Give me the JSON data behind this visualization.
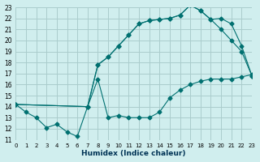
{
  "xlabel": "Humidex (Indice chaleur)",
  "ylabel": "",
  "bg_color": "#d0eeee",
  "grid_color": "#aacccc",
  "line_color": "#007070",
  "xlim": [
    0,
    23
  ],
  "ylim": [
    11,
    23
  ],
  "xticks": [
    0,
    1,
    2,
    3,
    4,
    5,
    6,
    7,
    8,
    9,
    10,
    11,
    12,
    13,
    14,
    15,
    16,
    17,
    18,
    19,
    20,
    21,
    22,
    23
  ],
  "yticks": [
    11,
    12,
    13,
    14,
    15,
    16,
    17,
    18,
    19,
    20,
    21,
    22,
    23
  ],
  "line1_x": [
    0,
    1,
    2,
    3,
    4,
    5,
    6,
    7,
    8,
    9,
    10,
    11,
    12,
    13,
    14,
    15,
    16,
    17,
    18,
    19,
    20,
    21,
    22,
    23
  ],
  "line1_y": [
    14.2,
    13.5,
    13.0,
    12.1,
    12.4,
    11.7,
    11.3,
    14.0,
    16.5,
    13.0,
    13.2,
    13.0,
    13.0,
    13.0,
    13.5,
    14.8,
    15.5,
    16.0,
    16.3,
    16.5,
    16.5,
    16.5,
    16.7,
    16.9
  ],
  "line2_x": [
    0,
    7,
    8,
    9,
    10,
    11,
    12,
    13,
    14,
    15,
    16,
    17,
    18,
    19,
    20,
    21,
    22,
    23
  ],
  "line2_y": [
    14.2,
    14.0,
    17.8,
    18.5,
    19.5,
    20.5,
    21.5,
    21.8,
    21.9,
    22.0,
    22.3,
    23.2,
    22.7,
    21.9,
    22.0,
    21.5,
    19.5,
    16.8
  ],
  "line3_x": [
    0,
    7,
    8,
    9,
    10,
    11,
    12,
    13,
    14,
    15,
    16,
    17,
    18,
    19,
    20,
    21,
    22,
    23
  ],
  "line3_y": [
    14.2,
    14.0,
    17.8,
    18.5,
    19.5,
    20.5,
    21.5,
    21.8,
    21.9,
    22.0,
    22.3,
    23.2,
    22.7,
    21.9,
    21.0,
    20.0,
    19.0,
    16.8
  ]
}
